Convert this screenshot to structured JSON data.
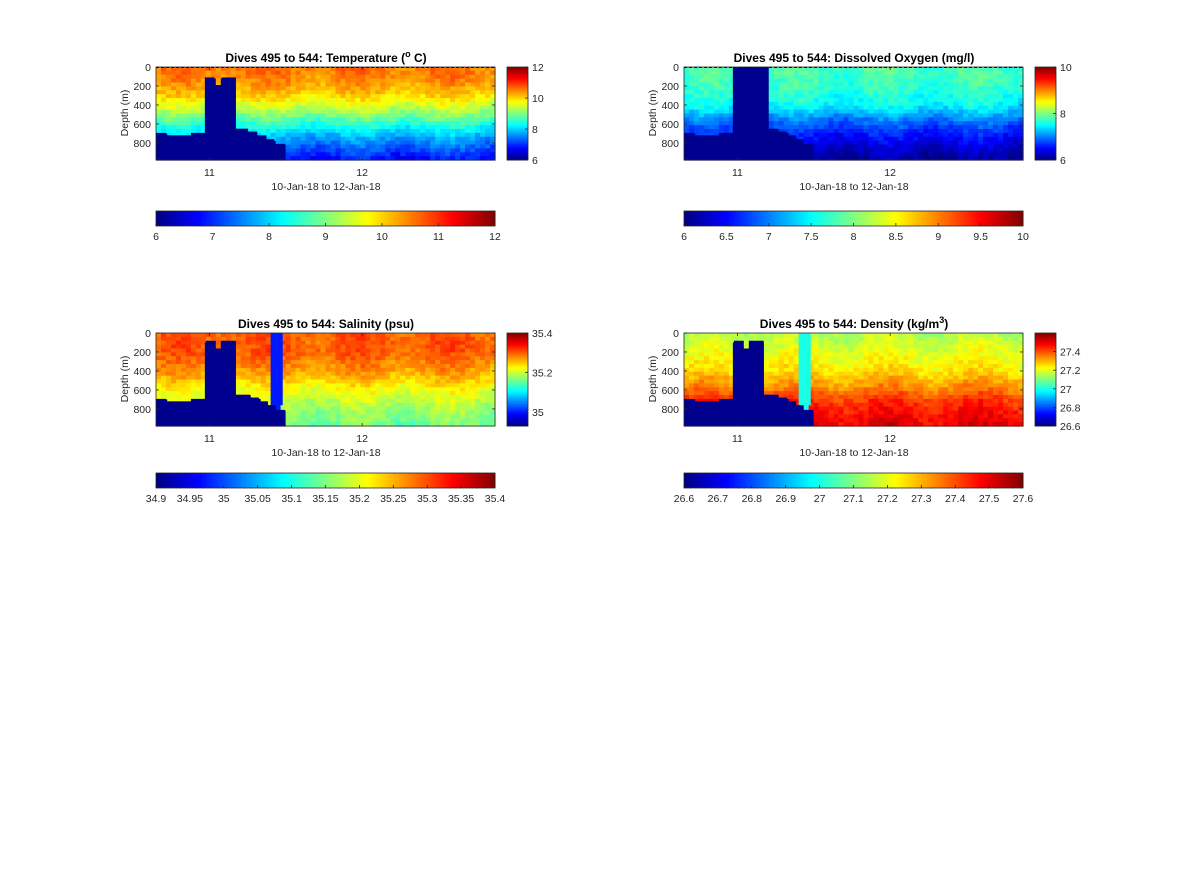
{
  "figure": {
    "background": "#ffffff"
  },
  "chart_data": [
    {
      "type": "heatmap",
      "title": "Dives 495 to 544: Temperature (",
      "title_sup": "o",
      "title_after": " C)",
      "xlabel": "10-Jan-18 to 12-Jan-18",
      "ylabel": "Depth (m)",
      "x_ticks": [
        11,
        12
      ],
      "y_ticks": [
        0,
        200,
        400,
        600,
        800
      ],
      "ylim": [
        0,
        980
      ],
      "xlim": [
        10.65,
        12.87
      ],
      "clim": [
        6,
        12
      ],
      "colormap": "jet",
      "side_colorbar_ticks": [
        6,
        8,
        10,
        12
      ],
      "bottom_colorbar_ticks": [
        "6",
        "7",
        "8",
        "9",
        "10",
        "11",
        "12"
      ],
      "surface_line": "dashed",
      "profile": [
        {
          "depth": 0,
          "value": 10.6
        },
        {
          "depth": 150,
          "value": 10.4
        },
        {
          "depth": 300,
          "value": 10.0
        },
        {
          "depth": 450,
          "value": 9.3
        },
        {
          "depth": 600,
          "value": 8.5
        },
        {
          "depth": 750,
          "value": 7.7
        },
        {
          "depth": 900,
          "value": 7.1
        },
        {
          "depth": 980,
          "value": 6.8
        }
      ],
      "mask": [
        {
          "x": [
            10.65,
            10.72
          ],
          "from_depth": 700
        },
        {
          "x": [
            10.72,
            10.88
          ],
          "from_depth": 720
        },
        {
          "x": [
            10.88,
            10.97
          ],
          "from_depth": 710
        },
        {
          "x": [
            10.97,
            11.03
          ],
          "from_depth": 110
        },
        {
          "x": [
            11.03,
            11.08
          ],
          "from_depth": 190
        },
        {
          "x": [
            11.08,
            11.17
          ],
          "from_depth": 110
        },
        {
          "x": [
            11.17,
            11.25
          ],
          "from_depth": 650
        },
        {
          "x": [
            11.25,
            11.31
          ],
          "from_depth": 680
        },
        {
          "x": [
            11.31,
            11.37
          ],
          "from_depth": 720
        },
        {
          "x": [
            11.37,
            11.42
          ],
          "from_depth": 760
        },
        {
          "x": [
            11.42,
            11.49
          ],
          "from_depth": 810
        }
      ]
    },
    {
      "type": "heatmap",
      "title": "Dives 495 to 544: Dissolved Oxygen (mg/l)",
      "title_sup": "",
      "title_after": "",
      "xlabel": "10-Jan-18 to 12-Jan-18",
      "ylabel": "Depth (m)",
      "x_ticks": [
        11,
        12
      ],
      "y_ticks": [
        0,
        200,
        400,
        600,
        800
      ],
      "ylim": [
        0,
        980
      ],
      "xlim": [
        10.65,
        12.87
      ],
      "clim": [
        6,
        10
      ],
      "colormap": "jet",
      "side_colorbar_ticks": [
        6,
        8,
        10
      ],
      "bottom_colorbar_ticks": [
        "6",
        "6.5",
        "7",
        "7.5",
        "8",
        "8.5",
        "9",
        "9.5",
        "10"
      ],
      "surface_line": "dashed",
      "profile": [
        {
          "depth": 0,
          "value": 7.8
        },
        {
          "depth": 200,
          "value": 7.7
        },
        {
          "depth": 400,
          "value": 7.5
        },
        {
          "depth": 550,
          "value": 7.0
        },
        {
          "depth": 700,
          "value": 6.6
        },
        {
          "depth": 850,
          "value": 6.3
        },
        {
          "depth": 980,
          "value": 6.1
        }
      ],
      "mask": [
        {
          "x": [
            10.65,
            10.72
          ],
          "from_depth": 700
        },
        {
          "x": [
            10.72,
            10.88
          ],
          "from_depth": 720
        },
        {
          "x": [
            10.88,
            10.97
          ],
          "from_depth": 710
        },
        {
          "x": [
            10.97,
            11.19
          ],
          "from_depth": 0
        },
        {
          "x": [
            11.19,
            11.26
          ],
          "from_depth": 650
        },
        {
          "x": [
            11.26,
            11.32
          ],
          "from_depth": 680
        },
        {
          "x": [
            11.32,
            11.38
          ],
          "from_depth": 720
        },
        {
          "x": [
            11.38,
            11.43
          ],
          "from_depth": 760
        },
        {
          "x": [
            11.43,
            11.49
          ],
          "from_depth": 810
        }
      ]
    },
    {
      "type": "heatmap",
      "title": "Dives 495 to 544: Salinity (psu)",
      "title_sup": "",
      "title_after": "",
      "xlabel": "10-Jan-18 to 12-Jan-18",
      "ylabel": "Depth (m)",
      "x_ticks": [
        11,
        12
      ],
      "y_ticks": [
        0,
        200,
        400,
        600,
        800
      ],
      "ylim": [
        0,
        980
      ],
      "xlim": [
        10.65,
        12.87
      ],
      "clim": [
        34.93,
        35.4
      ],
      "colormap": "jet",
      "side_colorbar_ticks": [
        35,
        35.2,
        35.4
      ],
      "bottom_colorbar_ticks": [
        "34.9",
        "34.95",
        "35",
        "35.05",
        "35.1",
        "35.15",
        "35.2",
        "35.25",
        "35.3",
        "35.35",
        "35.4"
      ],
      "surface_line": "none",
      "profile": [
        {
          "depth": 0,
          "value": 35.3
        },
        {
          "depth": 200,
          "value": 35.3
        },
        {
          "depth": 400,
          "value": 35.27
        },
        {
          "depth": 600,
          "value": 35.22
        },
        {
          "depth": 800,
          "value": 35.18
        },
        {
          "depth": 980,
          "value": 35.16
        }
      ],
      "mask": [
        {
          "x": [
            10.65,
            10.72
          ],
          "from_depth": 700
        },
        {
          "x": [
            10.72,
            10.88
          ],
          "from_depth": 720
        },
        {
          "x": [
            10.88,
            10.97
          ],
          "from_depth": 710
        },
        {
          "x": [
            10.97,
            11.03
          ],
          "from_depth": 100
        },
        {
          "x": [
            11.03,
            11.08
          ],
          "from_depth": 180
        },
        {
          "x": [
            11.08,
            11.17
          ],
          "from_depth": 100
        },
        {
          "x": [
            11.17,
            11.26
          ],
          "from_depth": 650
        },
        {
          "x": [
            11.26,
            11.32
          ],
          "from_depth": 680
        },
        {
          "x": [
            11.32,
            11.38
          ],
          "from_depth": 720
        },
        {
          "x": [
            11.38,
            11.43
          ],
          "from_depth": 760
        },
        {
          "x": [
            11.43,
            11.49
          ],
          "from_depth": 810
        }
      ],
      "stripe": {
        "x": [
          11.41,
          11.48
        ],
        "value": 35.0
      }
    },
    {
      "type": "heatmap",
      "title": "Dives 495 to 544: Density (kg/m",
      "title_sup": "3",
      "title_after": ")",
      "xlabel": "10-Jan-18 to 12-Jan-18",
      "ylabel": "Depth (m)",
      "x_ticks": [
        11,
        12
      ],
      "y_ticks": [
        0,
        200,
        400,
        600,
        800
      ],
      "ylim": [
        0,
        980
      ],
      "xlim": [
        10.65,
        12.87
      ],
      "clim": [
        26.6,
        27.6
      ],
      "colormap": "jet",
      "side_colorbar_ticks": [
        26.6,
        26.8,
        27,
        27.2,
        27.4
      ],
      "bottom_colorbar_ticks": [
        "26.6",
        "26.7",
        "26.8",
        "26.9",
        "27",
        "27.1",
        "27.2",
        "27.3",
        "27.4",
        "27.5",
        "27.6"
      ],
      "surface_line": "none",
      "profile": [
        {
          "depth": 0,
          "value": 27.15
        },
        {
          "depth": 200,
          "value": 27.2
        },
        {
          "depth": 400,
          "value": 27.25
        },
        {
          "depth": 550,
          "value": 27.33
        },
        {
          "depth": 700,
          "value": 27.42
        },
        {
          "depth": 850,
          "value": 27.47
        },
        {
          "depth": 980,
          "value": 27.5
        }
      ],
      "mask": [
        {
          "x": [
            10.65,
            10.72
          ],
          "from_depth": 700
        },
        {
          "x": [
            10.72,
            10.88
          ],
          "from_depth": 720
        },
        {
          "x": [
            10.88,
            10.97
          ],
          "from_depth": 710
        },
        {
          "x": [
            10.97,
            11.03
          ],
          "from_depth": 100
        },
        {
          "x": [
            11.03,
            11.08
          ],
          "from_depth": 180
        },
        {
          "x": [
            11.08,
            11.17
          ],
          "from_depth": 100
        },
        {
          "x": [
            11.17,
            11.26
          ],
          "from_depth": 650
        },
        {
          "x": [
            11.26,
            11.32
          ],
          "from_depth": 680
        },
        {
          "x": [
            11.32,
            11.38
          ],
          "from_depth": 720
        },
        {
          "x": [
            11.38,
            11.43
          ],
          "from_depth": 760
        },
        {
          "x": [
            11.43,
            11.49
          ],
          "from_depth": 810
        }
      ],
      "stripe": {
        "x": [
          11.41,
          11.48
        ],
        "value": 27.0
      }
    }
  ]
}
